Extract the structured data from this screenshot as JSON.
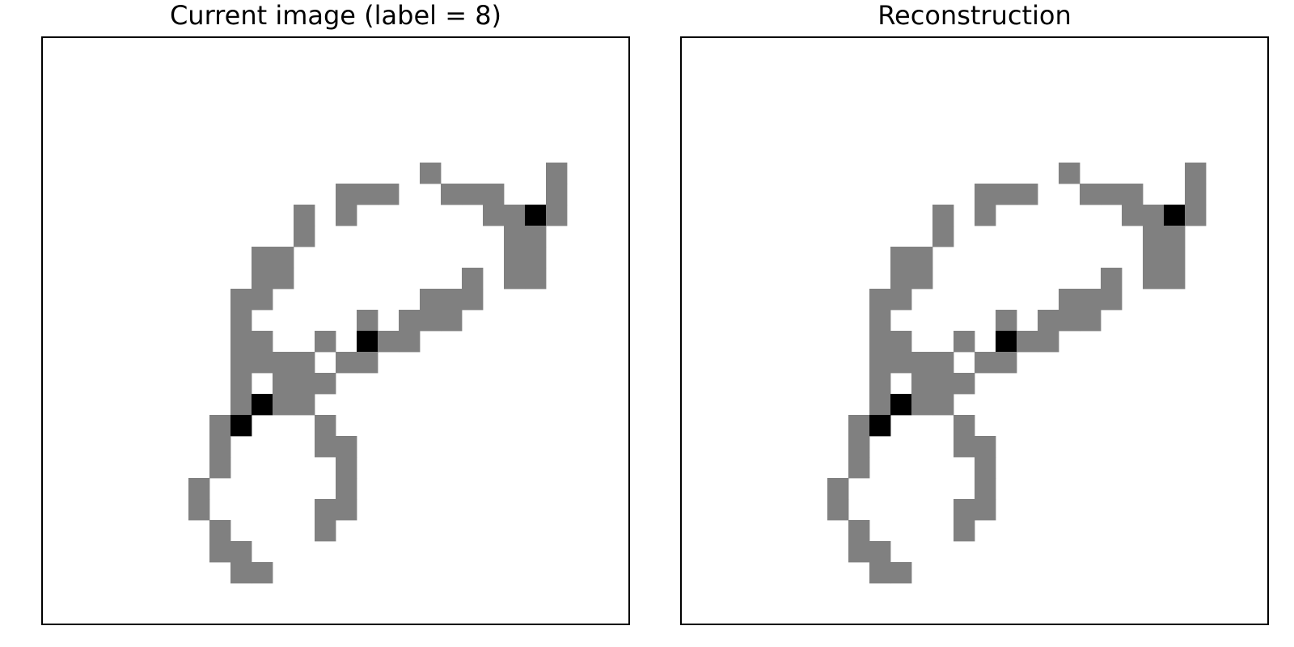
{
  "chart_data": [
    {
      "type": "heatmap",
      "title": "Current image (label = 8)",
      "grid": false,
      "rows": 28,
      "cols": 28,
      "colormap": "gray_r",
      "value_colors": {
        "0": "#ffffff",
        "1": "#808080",
        "2": "#000000"
      },
      "cells": [
        [
          6,
          18,
          1
        ],
        [
          6,
          24,
          1
        ],
        [
          7,
          14,
          1
        ],
        [
          7,
          15,
          1
        ],
        [
          7,
          16,
          1
        ],
        [
          7,
          19,
          1
        ],
        [
          7,
          20,
          1
        ],
        [
          7,
          21,
          1
        ],
        [
          7,
          24,
          1
        ],
        [
          8,
          12,
          1
        ],
        [
          8,
          14,
          1
        ],
        [
          8,
          21,
          1
        ],
        [
          8,
          22,
          1
        ],
        [
          8,
          23,
          2
        ],
        [
          8,
          24,
          1
        ],
        [
          9,
          12,
          1
        ],
        [
          9,
          22,
          1
        ],
        [
          9,
          23,
          1
        ],
        [
          10,
          10,
          1
        ],
        [
          10,
          11,
          1
        ],
        [
          10,
          22,
          1
        ],
        [
          10,
          23,
          1
        ],
        [
          11,
          10,
          1
        ],
        [
          11,
          11,
          1
        ],
        [
          11,
          20,
          1
        ],
        [
          11,
          22,
          1
        ],
        [
          11,
          23,
          1
        ],
        [
          12,
          9,
          1
        ],
        [
          12,
          10,
          1
        ],
        [
          12,
          18,
          1
        ],
        [
          12,
          19,
          1
        ],
        [
          12,
          20,
          1
        ],
        [
          13,
          9,
          1
        ],
        [
          13,
          15,
          1
        ],
        [
          13,
          17,
          1
        ],
        [
          13,
          18,
          1
        ],
        [
          13,
          19,
          1
        ],
        [
          14,
          9,
          1
        ],
        [
          14,
          10,
          1
        ],
        [
          14,
          13,
          1
        ],
        [
          14,
          15,
          2
        ],
        [
          14,
          16,
          1
        ],
        [
          14,
          17,
          1
        ],
        [
          15,
          9,
          1
        ],
        [
          15,
          10,
          1
        ],
        [
          15,
          11,
          1
        ],
        [
          15,
          12,
          1
        ],
        [
          15,
          14,
          1
        ],
        [
          15,
          15,
          1
        ],
        [
          16,
          9,
          1
        ],
        [
          16,
          11,
          1
        ],
        [
          16,
          12,
          1
        ],
        [
          16,
          13,
          1
        ],
        [
          17,
          9,
          1
        ],
        [
          17,
          10,
          2
        ],
        [
          17,
          11,
          1
        ],
        [
          17,
          12,
          1
        ],
        [
          18,
          8,
          1
        ],
        [
          18,
          9,
          2
        ],
        [
          18,
          13,
          1
        ],
        [
          19,
          8,
          1
        ],
        [
          19,
          13,
          1
        ],
        [
          19,
          14,
          1
        ],
        [
          20,
          8,
          1
        ],
        [
          20,
          14,
          1
        ],
        [
          21,
          7,
          1
        ],
        [
          21,
          14,
          1
        ],
        [
          22,
          7,
          1
        ],
        [
          22,
          13,
          1
        ],
        [
          22,
          14,
          1
        ],
        [
          23,
          8,
          1
        ],
        [
          23,
          13,
          1
        ],
        [
          24,
          8,
          1
        ],
        [
          24,
          9,
          1
        ],
        [
          25,
          9,
          1
        ],
        [
          25,
          10,
          1
        ]
      ]
    },
    {
      "type": "heatmap",
      "title": "Reconstruction",
      "grid": false,
      "rows": 28,
      "cols": 28,
      "colormap": "gray_r",
      "value_colors": {
        "0": "#ffffff",
        "1": "#808080",
        "2": "#000000"
      },
      "cells": [
        [
          6,
          18,
          1
        ],
        [
          6,
          24,
          1
        ],
        [
          7,
          14,
          1
        ],
        [
          7,
          15,
          1
        ],
        [
          7,
          16,
          1
        ],
        [
          7,
          19,
          1
        ],
        [
          7,
          20,
          1
        ],
        [
          7,
          21,
          1
        ],
        [
          7,
          24,
          1
        ],
        [
          8,
          12,
          1
        ],
        [
          8,
          14,
          1
        ],
        [
          8,
          21,
          1
        ],
        [
          8,
          22,
          1
        ],
        [
          8,
          23,
          2
        ],
        [
          8,
          24,
          1
        ],
        [
          9,
          12,
          1
        ],
        [
          9,
          22,
          1
        ],
        [
          9,
          23,
          1
        ],
        [
          10,
          10,
          1
        ],
        [
          10,
          11,
          1
        ],
        [
          10,
          22,
          1
        ],
        [
          10,
          23,
          1
        ],
        [
          11,
          10,
          1
        ],
        [
          11,
          11,
          1
        ],
        [
          11,
          20,
          1
        ],
        [
          11,
          22,
          1
        ],
        [
          11,
          23,
          1
        ],
        [
          12,
          9,
          1
        ],
        [
          12,
          10,
          1
        ],
        [
          12,
          18,
          1
        ],
        [
          12,
          19,
          1
        ],
        [
          12,
          20,
          1
        ],
        [
          13,
          9,
          1
        ],
        [
          13,
          15,
          1
        ],
        [
          13,
          17,
          1
        ],
        [
          13,
          18,
          1
        ],
        [
          13,
          19,
          1
        ],
        [
          14,
          9,
          1
        ],
        [
          14,
          10,
          1
        ],
        [
          14,
          13,
          1
        ],
        [
          14,
          15,
          2
        ],
        [
          14,
          16,
          1
        ],
        [
          14,
          17,
          1
        ],
        [
          15,
          9,
          1
        ],
        [
          15,
          10,
          1
        ],
        [
          15,
          11,
          1
        ],
        [
          15,
          12,
          1
        ],
        [
          15,
          14,
          1
        ],
        [
          15,
          15,
          1
        ],
        [
          16,
          9,
          1
        ],
        [
          16,
          11,
          1
        ],
        [
          16,
          12,
          1
        ],
        [
          16,
          13,
          1
        ],
        [
          17,
          9,
          1
        ],
        [
          17,
          10,
          2
        ],
        [
          17,
          11,
          1
        ],
        [
          17,
          12,
          1
        ],
        [
          18,
          8,
          1
        ],
        [
          18,
          9,
          2
        ],
        [
          18,
          13,
          1
        ],
        [
          19,
          8,
          1
        ],
        [
          19,
          13,
          1
        ],
        [
          19,
          14,
          1
        ],
        [
          20,
          8,
          1
        ],
        [
          20,
          14,
          1
        ],
        [
          21,
          7,
          1
        ],
        [
          21,
          14,
          1
        ],
        [
          22,
          7,
          1
        ],
        [
          22,
          13,
          1
        ],
        [
          22,
          14,
          1
        ],
        [
          23,
          8,
          1
        ],
        [
          23,
          13,
          1
        ],
        [
          24,
          8,
          1
        ],
        [
          24,
          9,
          1
        ],
        [
          25,
          9,
          1
        ],
        [
          25,
          10,
          1
        ]
      ]
    }
  ]
}
